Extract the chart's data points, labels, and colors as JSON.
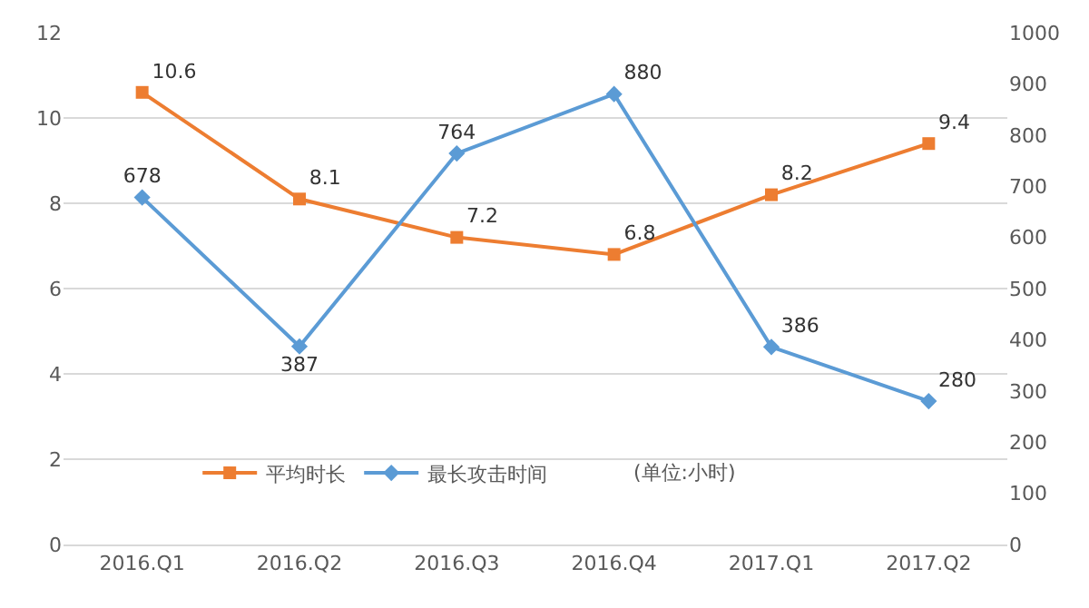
{
  "chart_data": {
    "type": "line",
    "categories": [
      "2016.Q1",
      "2016.Q2",
      "2016.Q3",
      "2016.Q4",
      "2017.Q1",
      "2017.Q2"
    ],
    "series": [
      {
        "name": "平均时长",
        "color": "#ed7d31",
        "marker": "square",
        "values": [
          10.6,
          8.1,
          7.2,
          6.8,
          8.2,
          9.4
        ]
      },
      {
        "name": "最长攻击时间",
        "color": "#5b9bd5",
        "marker": "diamond",
        "axis": "y2",
        "values": [
          678,
          387,
          764,
          880,
          386,
          280
        ]
      }
    ],
    "ylim": [
      0,
      12
    ],
    "yticks": [
      0,
      2,
      4,
      6,
      8,
      10,
      12
    ],
    "y2lim": [
      0,
      1000
    ],
    "y2ticks": [
      0,
      100,
      200,
      300,
      400,
      500,
      600,
      700,
      800,
      900,
      1000
    ],
    "annotations": [
      "(单位:小时)"
    ],
    "data_labels": true,
    "grid": "y",
    "legend": "bottom",
    "line_style": "solid"
  }
}
